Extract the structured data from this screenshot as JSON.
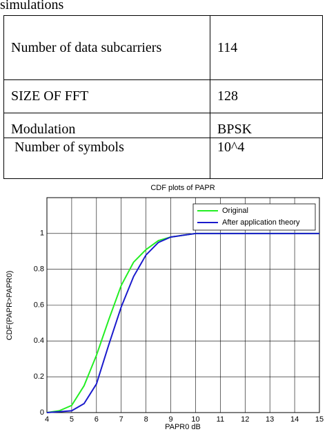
{
  "heading": "simulations",
  "table": {
    "rows": [
      [
        "Number of data subcarriers",
        "114"
      ],
      [
        "SIZE OF FFT",
        "128"
      ],
      [
        "Modulation",
        "BPSK"
      ],
      [
        " Number of symbols",
        "10^4"
      ]
    ]
  },
  "chart_data": {
    "type": "line",
    "title": "CDF plots of PAPR",
    "x_label": "PAPR0 dB",
    "y_label": "CDF(PAPR>PAPR0)",
    "x": [
      4,
      4.5,
      5,
      5.5,
      6,
      6.5,
      7,
      7.5,
      8,
      8.5,
      9,
      9.5,
      10,
      10.5,
      11,
      11.5,
      12,
      12.5,
      13,
      13.5,
      14,
      14.5,
      15
    ],
    "series": [
      {
        "name": "Original",
        "color": "#22ee22",
        "values": [
          0,
          0.01,
          0.04,
          0.15,
          0.32,
          0.52,
          0.71,
          0.84,
          0.91,
          0.96,
          0.98,
          0.99,
          1,
          1,
          1,
          1,
          1,
          1,
          1,
          1,
          1,
          1,
          1
        ]
      },
      {
        "name": "After application theory",
        "color": "#1a1acc",
        "values": [
          0,
          0.005,
          0.01,
          0.05,
          0.16,
          0.38,
          0.59,
          0.76,
          0.88,
          0.95,
          0.98,
          0.99,
          1,
          1,
          1,
          1,
          1,
          1,
          1,
          1,
          1,
          1,
          1
        ]
      }
    ],
    "xlim": [
      4,
      15
    ],
    "ylim": [
      0,
      1.2
    ],
    "xticks": [
      4,
      5,
      6,
      7,
      8,
      9,
      10,
      11,
      12,
      13,
      14,
      15
    ],
    "yticks": [
      0,
      0.2,
      0.4,
      0.6,
      0.8,
      1
    ],
    "grid": true,
    "legend": "top-right"
  }
}
